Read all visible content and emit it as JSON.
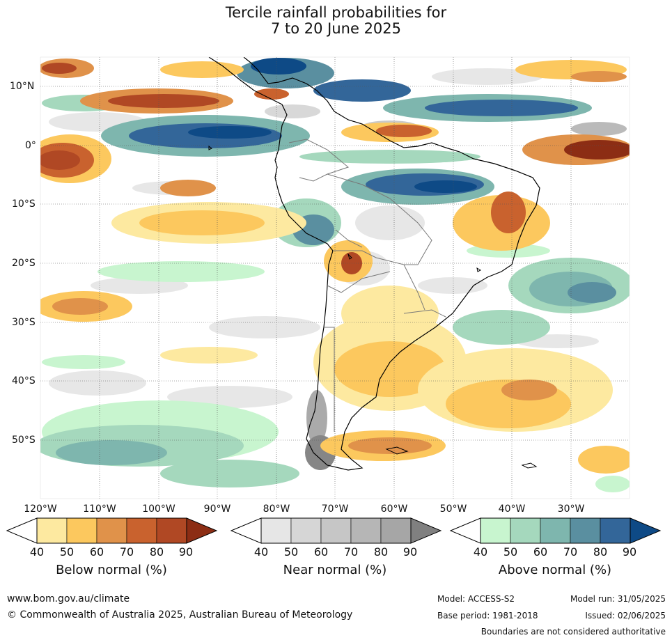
{
  "title_line1": "Tercile rainfall probabilities for",
  "title_line2": "7 to 20 June 2025",
  "map": {
    "lon_labels": [
      "120°W",
      "110°W",
      "100°W",
      "90°W",
      "80°W",
      "70°W",
      "60°W",
      "50°W",
      "40°W",
      "30°W"
    ],
    "lat_labels": [
      "10°N",
      "0°",
      "10°S",
      "20°S",
      "30°S",
      "40°S",
      "50°S"
    ]
  },
  "legend": {
    "below": {
      "title": "Below normal (%)",
      "ticks": [
        "40",
        "50",
        "60",
        "70",
        "80",
        "90"
      ],
      "colors": [
        "#fde9a0",
        "#fcc85e",
        "#e0924a",
        "#c9622e",
        "#b04824",
        "#8c2d14"
      ]
    },
    "near": {
      "title": "Near normal (%)",
      "ticks": [
        "40",
        "50",
        "60",
        "70",
        "80",
        "90"
      ],
      "colors": [
        "#e6e6e6",
        "#d6d6d6",
        "#c6c6c6",
        "#b6b6b6",
        "#a6a6a6",
        "#808080"
      ]
    },
    "above": {
      "title": "Above normal (%)",
      "ticks": [
        "40",
        "50",
        "60",
        "70",
        "80",
        "90"
      ],
      "colors": [
        "#c8f5cf",
        "#a5d8bd",
        "#7eb6ae",
        "#5a8fa0",
        "#336699",
        "#0e4a86"
      ]
    }
  },
  "footer": {
    "website": "www.bom.gov.au/climate",
    "copyright": "© Commonwealth of Australia 2025, Australian Bureau of Meteorology",
    "model": "Model: ACCESS-S2",
    "model_run": "Model run: 31/05/2025",
    "base_period": "Base period: 1981-2018",
    "issued": "Issued: 02/06/2025",
    "disclaimer": "Boundaries are not considered authoritative"
  }
}
